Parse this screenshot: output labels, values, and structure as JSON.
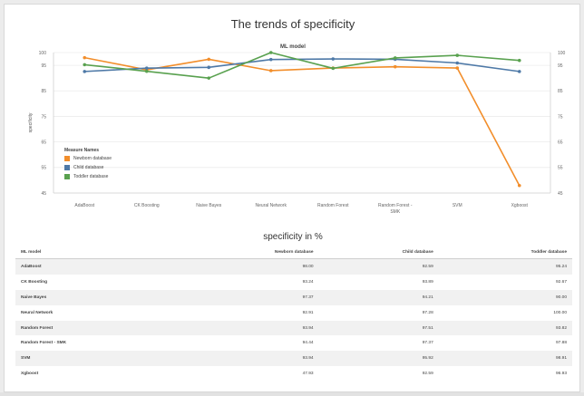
{
  "chart_data": {
    "type": "line",
    "title": "The trends of specificity",
    "subtitle": "ML model",
    "ylabel": "specificity",
    "ylim": [
      45,
      100
    ],
    "y_ticks": [
      45,
      55,
      65,
      75,
      85,
      95,
      100
    ],
    "categories": [
      "AdaBoost",
      "CK Boosting",
      "Naive Bayes",
      "Neural Network",
      "Random Forest",
      "Random Forest - SMK",
      "SVM",
      "Xgboost"
    ],
    "legend_title": "Measure Names",
    "series": [
      {
        "name": "Newborn database",
        "color": "#f28e2b",
        "values": [
          98.0,
          93.24,
          97.37,
          92.91,
          93.94,
          94.44,
          93.94,
          47.93
        ]
      },
      {
        "name": "Child database",
        "color": "#4e79a7",
        "values": [
          92.59,
          93.89,
          94.21,
          97.28,
          97.51,
          97.37,
          95.92,
          92.59
        ]
      },
      {
        "name": "Toddler database",
        "color": "#59a14f",
        "values": [
          95.24,
          92.67,
          90.0,
          100.0,
          93.82,
          97.88,
          98.91,
          96.93
        ]
      }
    ]
  },
  "table": {
    "title": "specificity in %",
    "columns": [
      "ML model",
      "Newborn database",
      "Child database",
      "Toddler database"
    ],
    "rows": [
      [
        "AdaBoost",
        "98.00",
        "92.59",
        "95.24"
      ],
      [
        "CK Boosting",
        "93.24",
        "93.89",
        "92.67"
      ],
      [
        "Naive Bayes",
        "97.37",
        "94.21",
        "90.00"
      ],
      [
        "Neural Network",
        "92.91",
        "97.28",
        "100.00"
      ],
      [
        "Random Forest",
        "93.94",
        "97.51",
        "93.82"
      ],
      [
        "Random Forest - SMK",
        "94.44",
        "97.37",
        "97.88"
      ],
      [
        "SVM",
        "93.94",
        "95.92",
        "98.91"
      ],
      [
        "Xgboost",
        "47.93",
        "92.59",
        "96.93"
      ]
    ]
  }
}
